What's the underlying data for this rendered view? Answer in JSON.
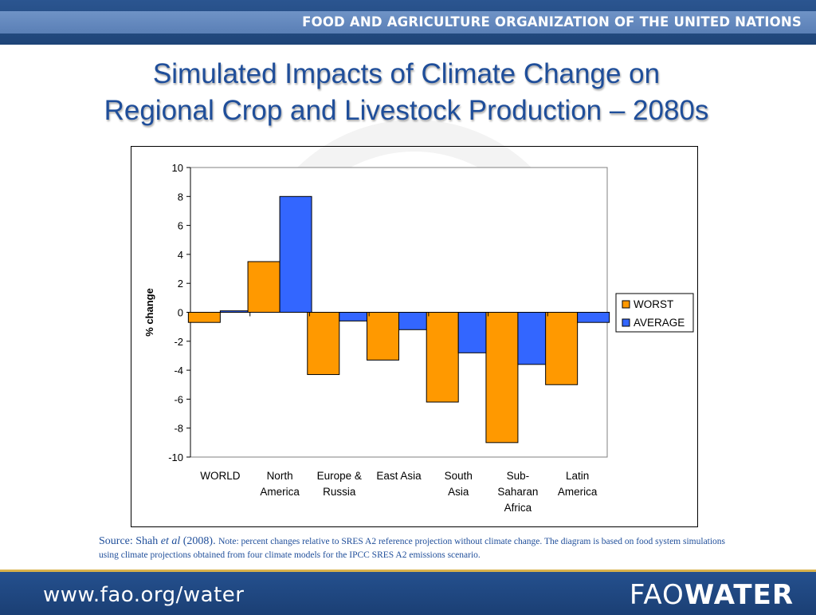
{
  "header": {
    "org_name": "FOOD AND AGRICULTURE ORGANIZATION OF THE UNITED NATIONS"
  },
  "slide": {
    "title_line1": "Simulated Impacts of Climate Change on",
    "title_line2": "Regional Crop and Livestock Production – 2080s"
  },
  "source": {
    "author": "Source: Shah ",
    "etal": "et al",
    "year": " (2008). ",
    "note": "Note: percent changes relative to SRES A2 reference projection without climate change. The diagram is based on food system simulations using climate projections obtained from four climate models for the IPCC SRES A2 emissions scenario."
  },
  "footer": {
    "url": "www.fao.org/water",
    "brand_light": "FAO",
    "brand_bold": "WATER"
  },
  "colors": {
    "worst": "#ff9900",
    "average": "#3366ff",
    "title": "#1f4e9a",
    "bar_blue": "#24508e"
  },
  "chart_data": {
    "type": "bar",
    "categories": [
      [
        "WORLD"
      ],
      [
        "North",
        "America"
      ],
      [
        "Europe &",
        "Russia"
      ],
      [
        "East Asia"
      ],
      [
        "South",
        "Asia"
      ],
      [
        "Sub-",
        "Saharan",
        "Africa"
      ],
      [
        "Latin",
        "America"
      ]
    ],
    "series": [
      {
        "name": "WORST",
        "values": [
          -0.7,
          3.5,
          -4.3,
          -3.3,
          -6.2,
          -9.0,
          -5.0
        ]
      },
      {
        "name": "AVERAGE",
        "values": [
          0.1,
          8.0,
          -0.6,
          -1.2,
          -2.8,
          -3.6,
          -0.7
        ]
      }
    ],
    "ylabel": "% change",
    "ylim": [
      -10,
      10
    ],
    "yticks": [
      10,
      8,
      6,
      4,
      2,
      0,
      -2,
      -4,
      -6,
      -8,
      -10
    ],
    "legend_position": "right",
    "grid": false
  }
}
